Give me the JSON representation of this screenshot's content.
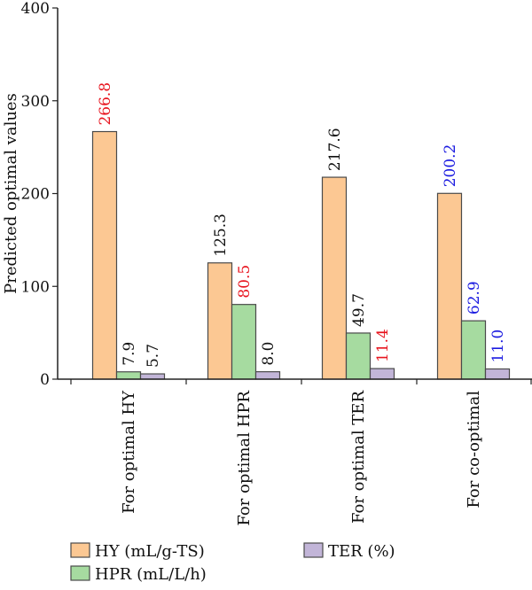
{
  "chart_data": {
    "type": "bar",
    "ylabel": "Predicted optimal values",
    "ylim": [
      0,
      400
    ],
    "yticks": [
      0,
      100,
      200,
      300,
      400
    ],
    "grid": false,
    "categories": [
      "For optimal HY",
      "For optimal HPR",
      "For optimal TER",
      "For co-optimal"
    ],
    "series": [
      {
        "name": "HY (mL/g-TS)",
        "color": "#fcc893",
        "values": [
          266.8,
          125.3,
          217.6,
          200.2
        ],
        "labels": [
          "266.8",
          "125.3",
          "217.6",
          "200.2"
        ],
        "label_colors": [
          "#e8141e",
          "#111111",
          "#111111",
          "#1a1ae0"
        ]
      },
      {
        "name": "HPR (mL/L/h)",
        "color": "#a6dba0",
        "values": [
          7.9,
          80.5,
          49.7,
          62.9
        ],
        "labels": [
          "7.9",
          "80.5",
          "49.7",
          "62.9"
        ],
        "label_colors": [
          "#111111",
          "#e8141e",
          "#111111",
          "#1a1ae0"
        ]
      },
      {
        "name": "TER (%)",
        "color": "#c2b5d8",
        "values": [
          5.7,
          8.0,
          11.4,
          11.0
        ],
        "labels": [
          "5.7",
          "8.0",
          "11.4",
          "11.0"
        ],
        "label_colors": [
          "#111111",
          "#111111",
          "#e8141e",
          "#1a1ae0"
        ]
      }
    ],
    "legend_placement": "bottom"
  }
}
